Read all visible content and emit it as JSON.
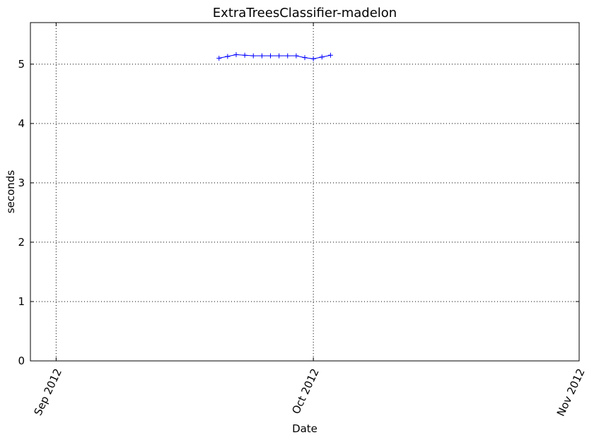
{
  "chart_data": {
    "type": "line",
    "title": "ExtraTreesClassifier-madelon",
    "xlabel": "Date",
    "ylabel": "seconds",
    "x_type": "date",
    "xlim": [
      "2012-08-29",
      "2012-11-01"
    ],
    "ylim": [
      0,
      5.7
    ],
    "x_ticks": [
      "2012-09-01",
      "2012-10-01",
      "2012-11-01"
    ],
    "x_tick_labels": [
      "Sep 2012",
      "Oct 2012",
      "Nov 2012"
    ],
    "y_ticks": [
      0,
      1,
      2,
      3,
      4,
      5
    ],
    "grid": true,
    "legend": "none",
    "marker": "+",
    "series": [
      {
        "color": "#0000ff",
        "points": [
          {
            "x": "2012-09-20",
            "y": 5.1
          },
          {
            "x": "2012-09-21",
            "y": 5.13
          },
          {
            "x": "2012-09-22",
            "y": 5.16
          },
          {
            "x": "2012-09-23",
            "y": 5.15
          },
          {
            "x": "2012-09-24",
            "y": 5.14
          },
          {
            "x": "2012-09-25",
            "y": 5.14
          },
          {
            "x": "2012-09-26",
            "y": 5.14
          },
          {
            "x": "2012-09-27",
            "y": 5.14
          },
          {
            "x": "2012-09-28",
            "y": 5.14
          },
          {
            "x": "2012-09-29",
            "y": 5.14
          },
          {
            "x": "2012-09-30",
            "y": 5.11
          },
          {
            "x": "2012-10-01",
            "y": 5.09
          },
          {
            "x": "2012-10-02",
            "y": 5.12
          },
          {
            "x": "2012-10-03",
            "y": 5.15
          }
        ]
      }
    ]
  }
}
